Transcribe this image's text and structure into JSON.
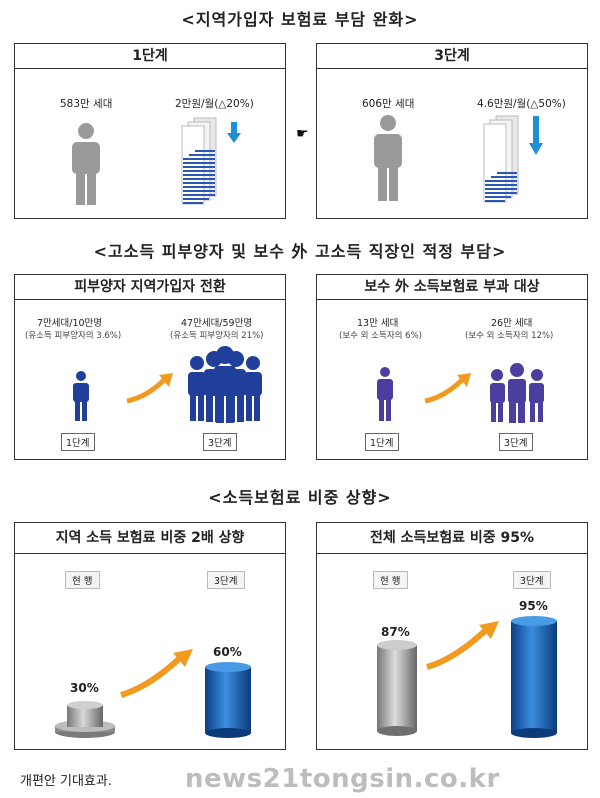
{
  "section1": {
    "heading": "<지역가입자 보험료 부담 완화>",
    "left": {
      "title": "1단계",
      "households": "583만 세대",
      "premium": "2만원/월(△20%)"
    },
    "right": {
      "title": "3단계",
      "households": "606만 세대",
      "premium": "4.6만원/월(△50%)"
    },
    "connector_icon": "pointing-hand-icon"
  },
  "section2": {
    "heading": "<고소득 피부양자 및 보수 外 고소득 직장인 적정 부담>",
    "left": {
      "title": "피부양자 지역가입자 전환",
      "stage1_value": "7만세대/10만명",
      "stage1_note": "(유소득 피부양자의 3.6%)",
      "stage3_value": "47만세대/59만명",
      "stage3_note": "(유소득 피부양자의 21%)",
      "stage1_label": "1단계",
      "stage3_label": "3단계"
    },
    "right": {
      "title": "보수 外 소득보험료 부과 대상",
      "stage1_value": "13만 세대",
      "stage1_note": "(보수 외 소득자의 6%)",
      "stage3_value": "26만 세대",
      "stage3_note": "(보수 외 소득자의 12%)",
      "stage1_label": "1단계",
      "stage3_label": "3단계"
    }
  },
  "section3": {
    "heading": "<소득보험료 비중 상향>",
    "left": {
      "title": "지역 소득 보험료 비중 2배 상향",
      "current_label": "현 행",
      "stage3_label": "3단계",
      "current_value": 30,
      "stage3_value": 60,
      "current_text": "30%",
      "stage3_text": "60%"
    },
    "right": {
      "title": "전체 소득보험료 비중 95%",
      "current_label": "현 행",
      "stage3_label": "3단계",
      "current_value": 87,
      "stage3_value": 95,
      "current_text": "87%",
      "stage3_text": "95%"
    }
  },
  "caption": "개편안 기대효과.",
  "watermark": "news21tongsin.co.kr",
  "colors": {
    "blue": "#1f3f9a",
    "purple": "#4a3e9f",
    "cyl_blue": "#1a63b0",
    "gray": "#999999",
    "orange": "#f29a1f",
    "down_arrow": "#1f8fd6"
  }
}
